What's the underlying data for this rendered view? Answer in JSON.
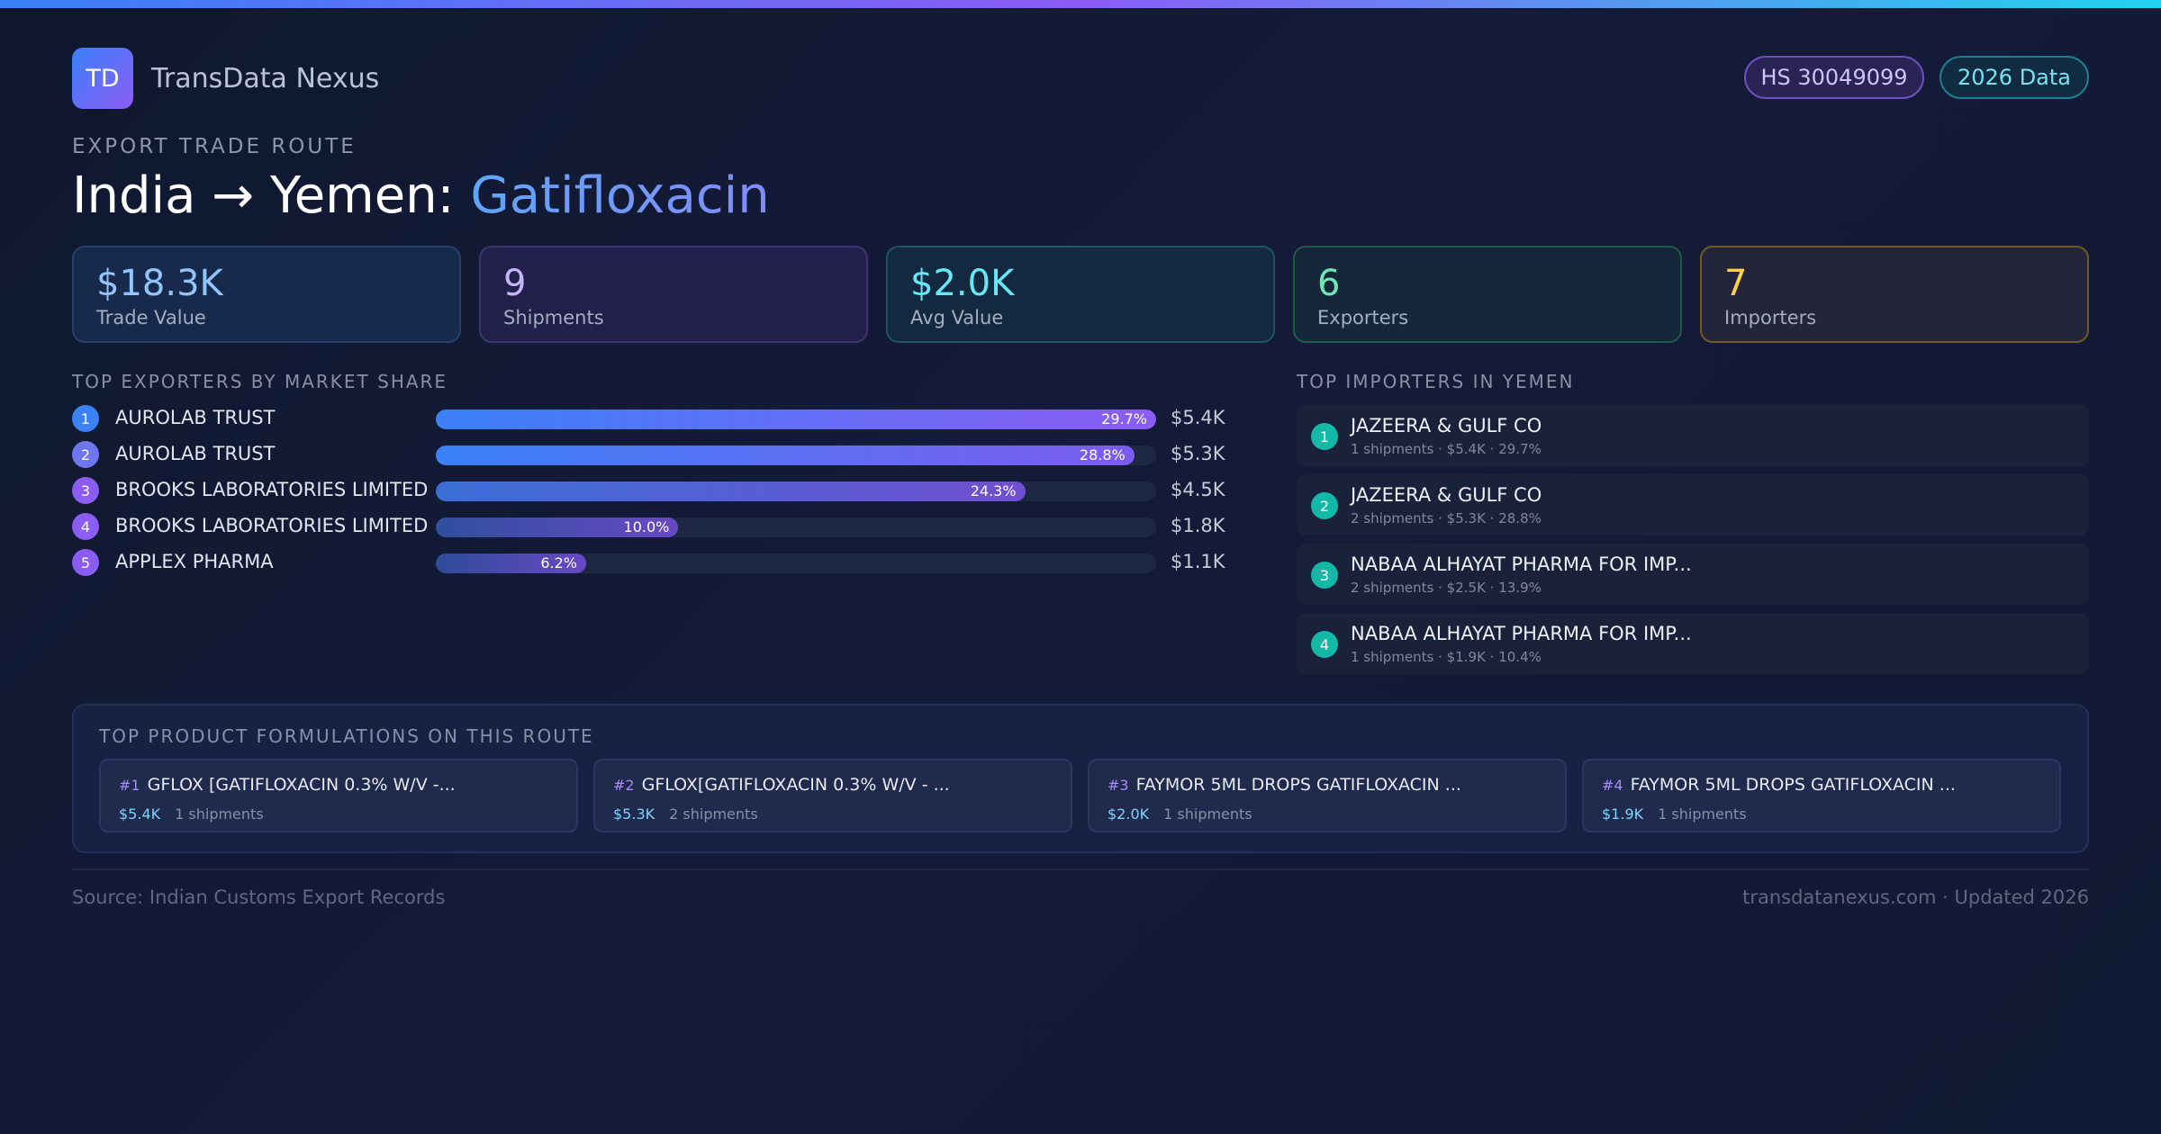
{
  "brand": {
    "logo_text": "TD",
    "name": "TransData Nexus"
  },
  "badges": {
    "hs_code": "HS 30049099",
    "year": "2026 Data"
  },
  "header": {
    "eyebrow": "EXPORT TRADE ROUTE",
    "route": "India → Yemen: ",
    "product": "Gatifloxacin"
  },
  "stats": [
    {
      "value": "$18.3K",
      "label": "Trade Value"
    },
    {
      "value": "9",
      "label": "Shipments"
    },
    {
      "value": "$2.0K",
      "label": "Avg Value"
    },
    {
      "value": "6",
      "label": "Exporters"
    },
    {
      "value": "7",
      "label": "Importers"
    }
  ],
  "exporters": {
    "title": "TOP EXPORTERS BY MARKET SHARE",
    "items": [
      {
        "rank": "1",
        "name": "AUROLAB TRUST",
        "share": 29.7,
        "share_label": "29.7%",
        "value": "$5.4K"
      },
      {
        "rank": "2",
        "name": "AUROLAB TRUST",
        "share": 28.8,
        "share_label": "28.8%",
        "value": "$5.3K"
      },
      {
        "rank": "3",
        "name": "BROOKS LABORATORIES LIMITED",
        "share": 24.3,
        "share_label": "24.3%",
        "value": "$4.5K"
      },
      {
        "rank": "4",
        "name": "BROOKS LABORATORIES LIMITED",
        "share": 10.0,
        "share_label": "10.0%",
        "value": "$1.8K"
      },
      {
        "rank": "5",
        "name": "APPLEX PHARMA",
        "share": 6.2,
        "share_label": "6.2%",
        "value": "$1.1K"
      }
    ],
    "rank_colors": [
      "#3b82f6",
      "#6d76ee",
      "#8b5cf6",
      "#8b5cf6",
      "#8b5cf6"
    ]
  },
  "importers": {
    "title": "TOP IMPORTERS IN YEMEN",
    "items": [
      {
        "rank": "1",
        "name": "JAZEERA & GULF CO",
        "meta": "1 shipments · $5.4K · 29.7%"
      },
      {
        "rank": "2",
        "name": "JAZEERA & GULF CO",
        "meta": "2 shipments · $5.3K · 28.8%"
      },
      {
        "rank": "3",
        "name": "NABAA ALHAYAT  PHARMA FOR IMP...",
        "meta": "2 shipments · $2.5K · 13.9%"
      },
      {
        "rank": "4",
        "name": "NABAA ALHAYAT  PHARMA FOR IMP...",
        "meta": "1 shipments · $1.9K · 10.4%"
      }
    ]
  },
  "formulations": {
    "title": "TOP PRODUCT FORMULATIONS ON THIS ROUTE",
    "items": [
      {
        "num": "#1",
        "name": "GFLOX [GATIFLOXACIN  0.3% W/V -...",
        "value": "$5.4K",
        "shipments": "1 shipments"
      },
      {
        "num": "#2",
        "name": "GFLOX[GATIFLOXACIN  0.3% W/V - ...",
        "value": "$5.3K",
        "shipments": "2 shipments"
      },
      {
        "num": "#3",
        "name": "FAYMOR 5ML DROPS GATIFLOXACIN ...",
        "value": "$2.0K",
        "shipments": "1 shipments"
      },
      {
        "num": "#4",
        "name": "FAYMOR 5ML DROPS GATIFLOXACIN ...",
        "value": "$1.9K",
        "shipments": "1 shipments"
      }
    ]
  },
  "footer": {
    "source": "Source: Indian Customs Export Records",
    "site": "transdatanexus.com · Updated 2026"
  }
}
